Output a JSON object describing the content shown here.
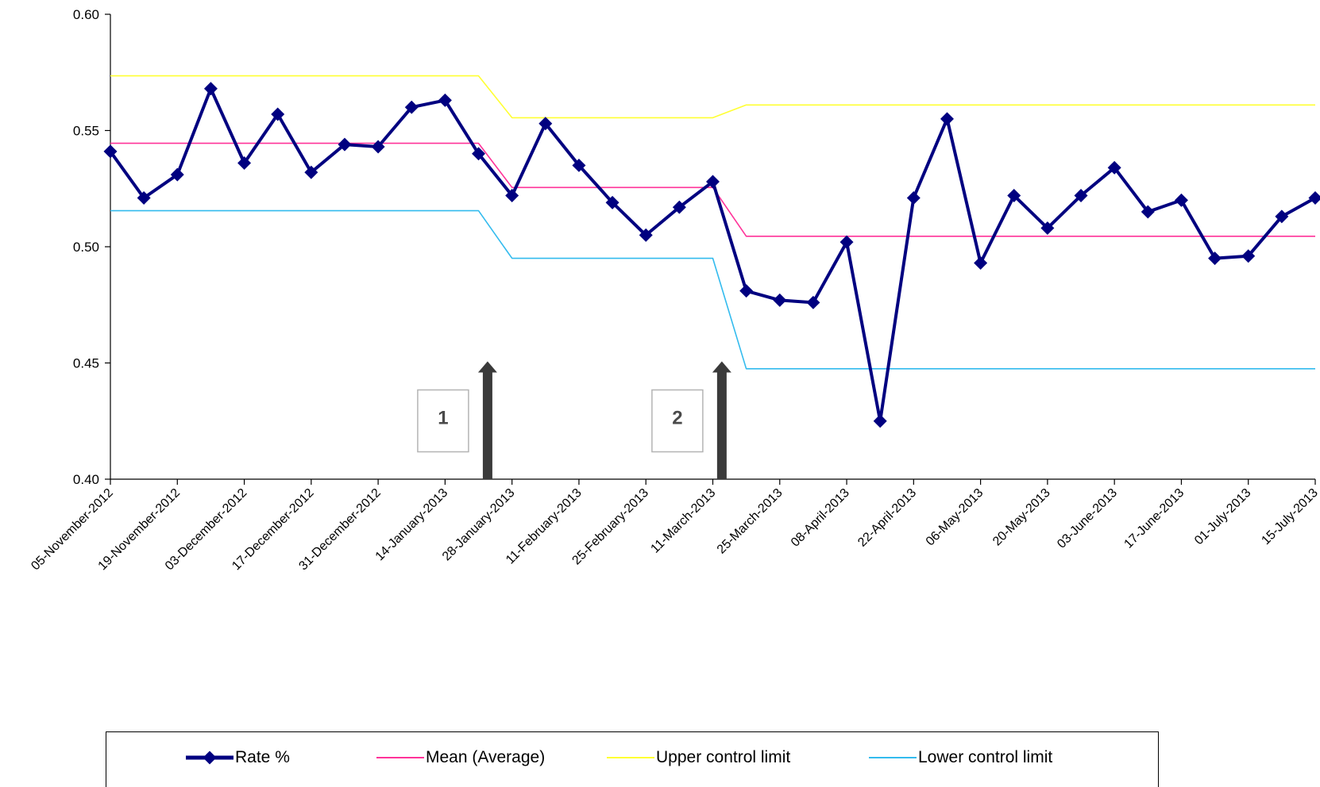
{
  "chart_data": {
    "type": "line",
    "x": [
      "05-November-2012",
      "12-November-2012",
      "19-November-2012",
      "26-November-2012",
      "03-December-2012",
      "10-December-2012",
      "17-December-2012",
      "24-December-2012",
      "31-December-2012",
      "07-January-2013",
      "14-January-2013",
      "21-January-2013",
      "28-January-2013",
      "04-February-2013",
      "11-February-2013",
      "18-February-2013",
      "25-February-2013",
      "04-March-2013",
      "11-March-2013",
      "18-March-2013",
      "25-March-2013",
      "01-April-2013",
      "08-April-2013",
      "15-April-2013",
      "22-April-2013",
      "29-April-2013",
      "06-May-2013",
      "13-May-2013",
      "20-May-2013",
      "27-May-2013",
      "03-June-2013",
      "10-June-2013",
      "17-June-2013",
      "24-June-2013",
      "01-July-2013",
      "08-July-2013",
      "15-July-2013"
    ],
    "x_tick_labels": [
      "05-November-2012",
      "19-November-2012",
      "03-December-2012",
      "17-December-2012",
      "31-December-2012",
      "14-January-2013",
      "28-January-2013",
      "11-February-2013",
      "25-February-2013",
      "11-March-2013",
      "25-March-2013",
      "08-April-2013",
      "22-April-2013",
      "06-May-2013",
      "20-May-2013",
      "03-June-2013",
      "17-June-2013",
      "01-July-2013",
      "15-July-2013"
    ],
    "y_ticks": [
      "0.40",
      "0.45",
      "0.50",
      "0.55",
      "0.60"
    ],
    "ylim": [
      0.4,
      0.6
    ],
    "series": [
      {
        "name": "Rate %",
        "color": "#000080",
        "values": [
          0.541,
          0.521,
          0.531,
          0.568,
          0.536,
          0.557,
          0.532,
          0.544,
          0.543,
          0.56,
          0.563,
          0.54,
          0.522,
          0.553,
          0.535,
          0.519,
          0.505,
          0.517,
          0.528,
          0.481,
          0.477,
          0.476,
          0.502,
          0.425,
          0.521,
          0.555,
          0.493,
          0.522,
          0.508,
          0.522,
          0.534,
          0.515,
          0.52,
          0.495,
          0.496,
          0.513,
          0.521
        ]
      },
      {
        "name": "Mean (Average)",
        "color": "#ff3399",
        "values": [
          0.5445,
          0.5445,
          0.5445,
          0.5445,
          0.5445,
          0.5445,
          0.5445,
          0.5445,
          0.5445,
          0.5445,
          0.5445,
          0.5445,
          0.5255,
          0.5255,
          0.5255,
          0.5255,
          0.5255,
          0.5255,
          0.5255,
          0.5045,
          0.5045,
          0.5045,
          0.5045,
          0.5045,
          0.5045,
          0.5045,
          0.5045,
          0.5045,
          0.5045,
          0.5045,
          0.5045,
          0.5045,
          0.5045,
          0.5045,
          0.5045,
          0.5045,
          0.5045
        ]
      },
      {
        "name": "Upper control limit",
        "color": "#ffff33",
        "values": [
          0.5735,
          0.5735,
          0.5735,
          0.5735,
          0.5735,
          0.5735,
          0.5735,
          0.5735,
          0.5735,
          0.5735,
          0.5735,
          0.5735,
          0.5555,
          0.5555,
          0.5555,
          0.5555,
          0.5555,
          0.5555,
          0.5555,
          0.561,
          0.561,
          0.561,
          0.561,
          0.561,
          0.561,
          0.561,
          0.561,
          0.561,
          0.561,
          0.561,
          0.561,
          0.561,
          0.561,
          0.561,
          0.561,
          0.561,
          0.561
        ]
      },
      {
        "name": "Lower control limit",
        "color": "#33bbee",
        "values": [
          0.5155,
          0.5155,
          0.5155,
          0.5155,
          0.5155,
          0.5155,
          0.5155,
          0.5155,
          0.5155,
          0.5155,
          0.5155,
          0.5155,
          0.495,
          0.495,
          0.495,
          0.495,
          0.495,
          0.495,
          0.495,
          0.4475,
          0.4475,
          0.4475,
          0.4475,
          0.4475,
          0.4475,
          0.4475,
          0.4475,
          0.4475,
          0.4475,
          0.4475,
          0.4475,
          0.4475,
          0.4475,
          0.4475,
          0.4475,
          0.4475,
          0.4475
        ]
      }
    ],
    "annotations": [
      {
        "label": "1",
        "after_point": "21-January-2013"
      },
      {
        "label": "2",
        "after_point": "11-March-2013"
      }
    ],
    "title": "",
    "xlabel": "",
    "ylabel": "",
    "grid": false,
    "legend_position": "bottom"
  },
  "legend": {
    "rate": "Rate %",
    "mean": "Mean (Average)",
    "ucl": "Upper control limit",
    "lcl": "Lower control limit"
  }
}
